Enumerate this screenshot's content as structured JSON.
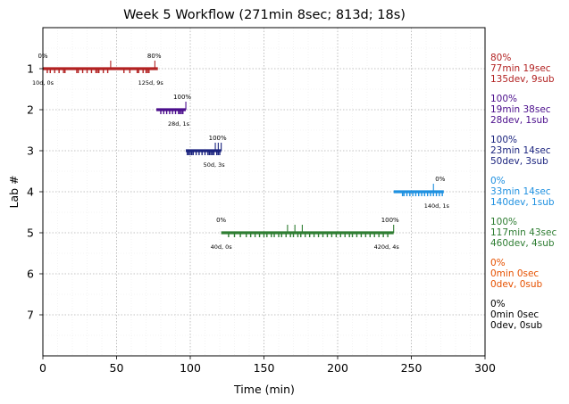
{
  "chart_data": {
    "type": "timeline",
    "title": "Week 5 Workflow (271min 8sec; 813d; 18s)",
    "xlabel": "Time (min)",
    "ylabel": "Lab #",
    "xlim": [
      0,
      300
    ],
    "ylim": [
      8,
      0
    ],
    "x_ticks": [
      "0",
      "50",
      "100",
      "150",
      "200",
      "250",
      "300"
    ],
    "y_ticks": [
      "1",
      "2",
      "3",
      "4",
      "5",
      "6",
      "7"
    ],
    "grid": true,
    "labs": [
      {
        "lab": 1,
        "color": "#b22222",
        "start": 0,
        "end": 78,
        "start_pct": "0%",
        "end_pct": "80%",
        "start_note": "10d, 0s",
        "end_note": "125d, 9s",
        "dev_ticks": [
          3,
          5,
          8,
          11,
          14,
          15,
          23,
          24,
          27,
          30,
          33,
          36,
          37,
          38,
          41,
          44,
          55,
          59,
          64,
          65,
          68,
          70,
          71,
          72
        ],
        "sub_ticks": [
          46,
          76
        ],
        "summary": [
          "80%",
          "77min 19sec",
          "135dev, 9sub"
        ]
      },
      {
        "lab": 2,
        "color": "#4b0e8c",
        "start": 77,
        "end": 97,
        "start_pct": "",
        "end_pct": "100%",
        "start_note": "",
        "end_note": "28d, 1s",
        "dev_ticks": [
          80,
          82,
          84,
          86,
          88,
          90,
          92,
          93,
          94,
          95
        ],
        "sub_ticks": [
          97
        ],
        "summary": [
          "100%",
          "19min 38sec",
          "28dev, 1sub"
        ]
      },
      {
        "lab": 3,
        "color": "#1a237e",
        "start": 97,
        "end": 121,
        "start_pct": "",
        "end_pct": "100%",
        "start_note": "",
        "end_note": "50d, 3s",
        "dev_ticks": [
          98,
          99,
          100,
          101,
          102,
          104,
          106,
          108,
          110,
          112,
          113,
          114,
          115,
          116,
          118,
          119,
          120
        ],
        "sub_ticks": [
          117,
          119,
          121
        ],
        "summary": [
          "100%",
          "23min 14sec",
          "50dev, 3sub"
        ]
      },
      {
        "lab": 4,
        "color": "#1e90e0",
        "start": 238,
        "end": 272,
        "start_pct": "",
        "end_pct": "0%",
        "start_note": "",
        "end_note": "140d, 1s",
        "dev_ticks": [
          244,
          245,
          247,
          249,
          251,
          253,
          255,
          257,
          259,
          261,
          263,
          265,
          267,
          269,
          271
        ],
        "sub_ticks": [
          265
        ],
        "summary": [
          "0%",
          "33min 14sec",
          "140dev, 1sub"
        ]
      },
      {
        "lab": 5,
        "color": "#2e7d32",
        "start": 121,
        "end": 238,
        "start_pct": "0%",
        "end_pct": "100%",
        "start_note": "40d, 0s",
        "end_note": "420d, 4s",
        "dev_ticks": [
          126,
          130,
          134,
          138,
          141,
          144,
          147,
          150,
          152,
          155,
          157,
          160,
          162,
          165,
          168,
          170,
          173,
          175,
          178,
          181,
          184,
          187,
          190,
          193,
          196,
          199,
          202,
          205,
          208,
          210,
          213,
          216,
          219,
          222,
          225,
          228,
          231,
          234
        ],
        "sub_ticks": [
          166,
          171,
          176,
          238
        ],
        "summary": [
          "100%",
          "117min 43sec",
          "460dev, 4sub"
        ]
      },
      {
        "lab": 6,
        "color": "#e65100",
        "start": null,
        "end": null,
        "summary": [
          "0%",
          "0min 0sec",
          "0dev, 0sub"
        ]
      },
      {
        "lab": 7,
        "color": "#000000",
        "start": null,
        "end": null,
        "summary": [
          "0%",
          "0min 0sec",
          "0dev, 0sub"
        ]
      }
    ]
  }
}
